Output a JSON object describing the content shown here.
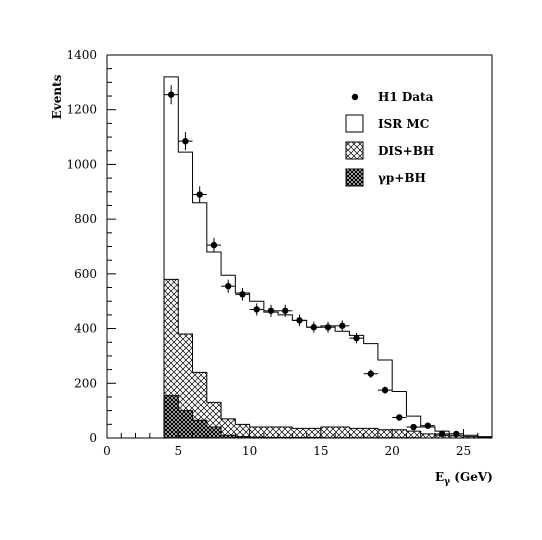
{
  "chart_data": {
    "type": "bar",
    "xlabel": "Eγ (GeV)",
    "ylabel": "Events",
    "xlim": [
      0,
      27
    ],
    "ylim": [
      0,
      1400
    ],
    "x_ticks": [
      0,
      5,
      10,
      15,
      20,
      25
    ],
    "y_ticks": [
      0,
      200,
      400,
      600,
      800,
      1000,
      1200,
      1400
    ],
    "legend_position": "top-right",
    "bin_edges": [
      4,
      5,
      6,
      7,
      8,
      9,
      10,
      11,
      12,
      13,
      14,
      15,
      16,
      17,
      18,
      19,
      20,
      21,
      22,
      23,
      24,
      25,
      26,
      27
    ],
    "series": [
      {
        "name": "ISR MC",
        "style": "open-histogram",
        "values": [
          1320,
          1045,
          860,
          680,
          595,
          530,
          500,
          460,
          450,
          430,
          405,
          410,
          390,
          375,
          345,
          285,
          170,
          80,
          40,
          25,
          15,
          10,
          5
        ]
      },
      {
        "name": "DIS+BH",
        "style": "hatched-histogram",
        "values": [
          580,
          380,
          240,
          130,
          70,
          50,
          40,
          40,
          40,
          35,
          35,
          40,
          40,
          35,
          35,
          30,
          30,
          25,
          15,
          10,
          8,
          5,
          3
        ]
      },
      {
        "name": "γp+BH",
        "style": "dark-hatched-histogram",
        "values": [
          155,
          100,
          65,
          40,
          10,
          5,
          3,
          2,
          2,
          2,
          2,
          1,
          1,
          1,
          1,
          1,
          1,
          1,
          0,
          0,
          0,
          0,
          0
        ]
      },
      {
        "name": "H1 Data",
        "style": "points-with-errors",
        "x": [
          4.5,
          5.5,
          6.5,
          7.5,
          8.5,
          9.5,
          10.5,
          11.5,
          12.5,
          13.5,
          14.5,
          15.5,
          16.5,
          17.5,
          18.5,
          19.5,
          20.5,
          21.5,
          22.5,
          23.5,
          24.5
        ],
        "y": [
          1255,
          1085,
          890,
          705,
          555,
          525,
          470,
          465,
          465,
          430,
          405,
          405,
          410,
          365,
          235,
          175,
          75,
          40,
          45,
          15,
          15
        ],
        "yerr": [
          35,
          33,
          30,
          27,
          24,
          23,
          22,
          22,
          22,
          21,
          20,
          20,
          20,
          19,
          15,
          13,
          9,
          6,
          7,
          4,
          4
        ]
      }
    ]
  },
  "legend": {
    "entries": [
      "H1 Data",
      "ISR MC",
      "DIS+BH",
      "γp+BH"
    ]
  }
}
